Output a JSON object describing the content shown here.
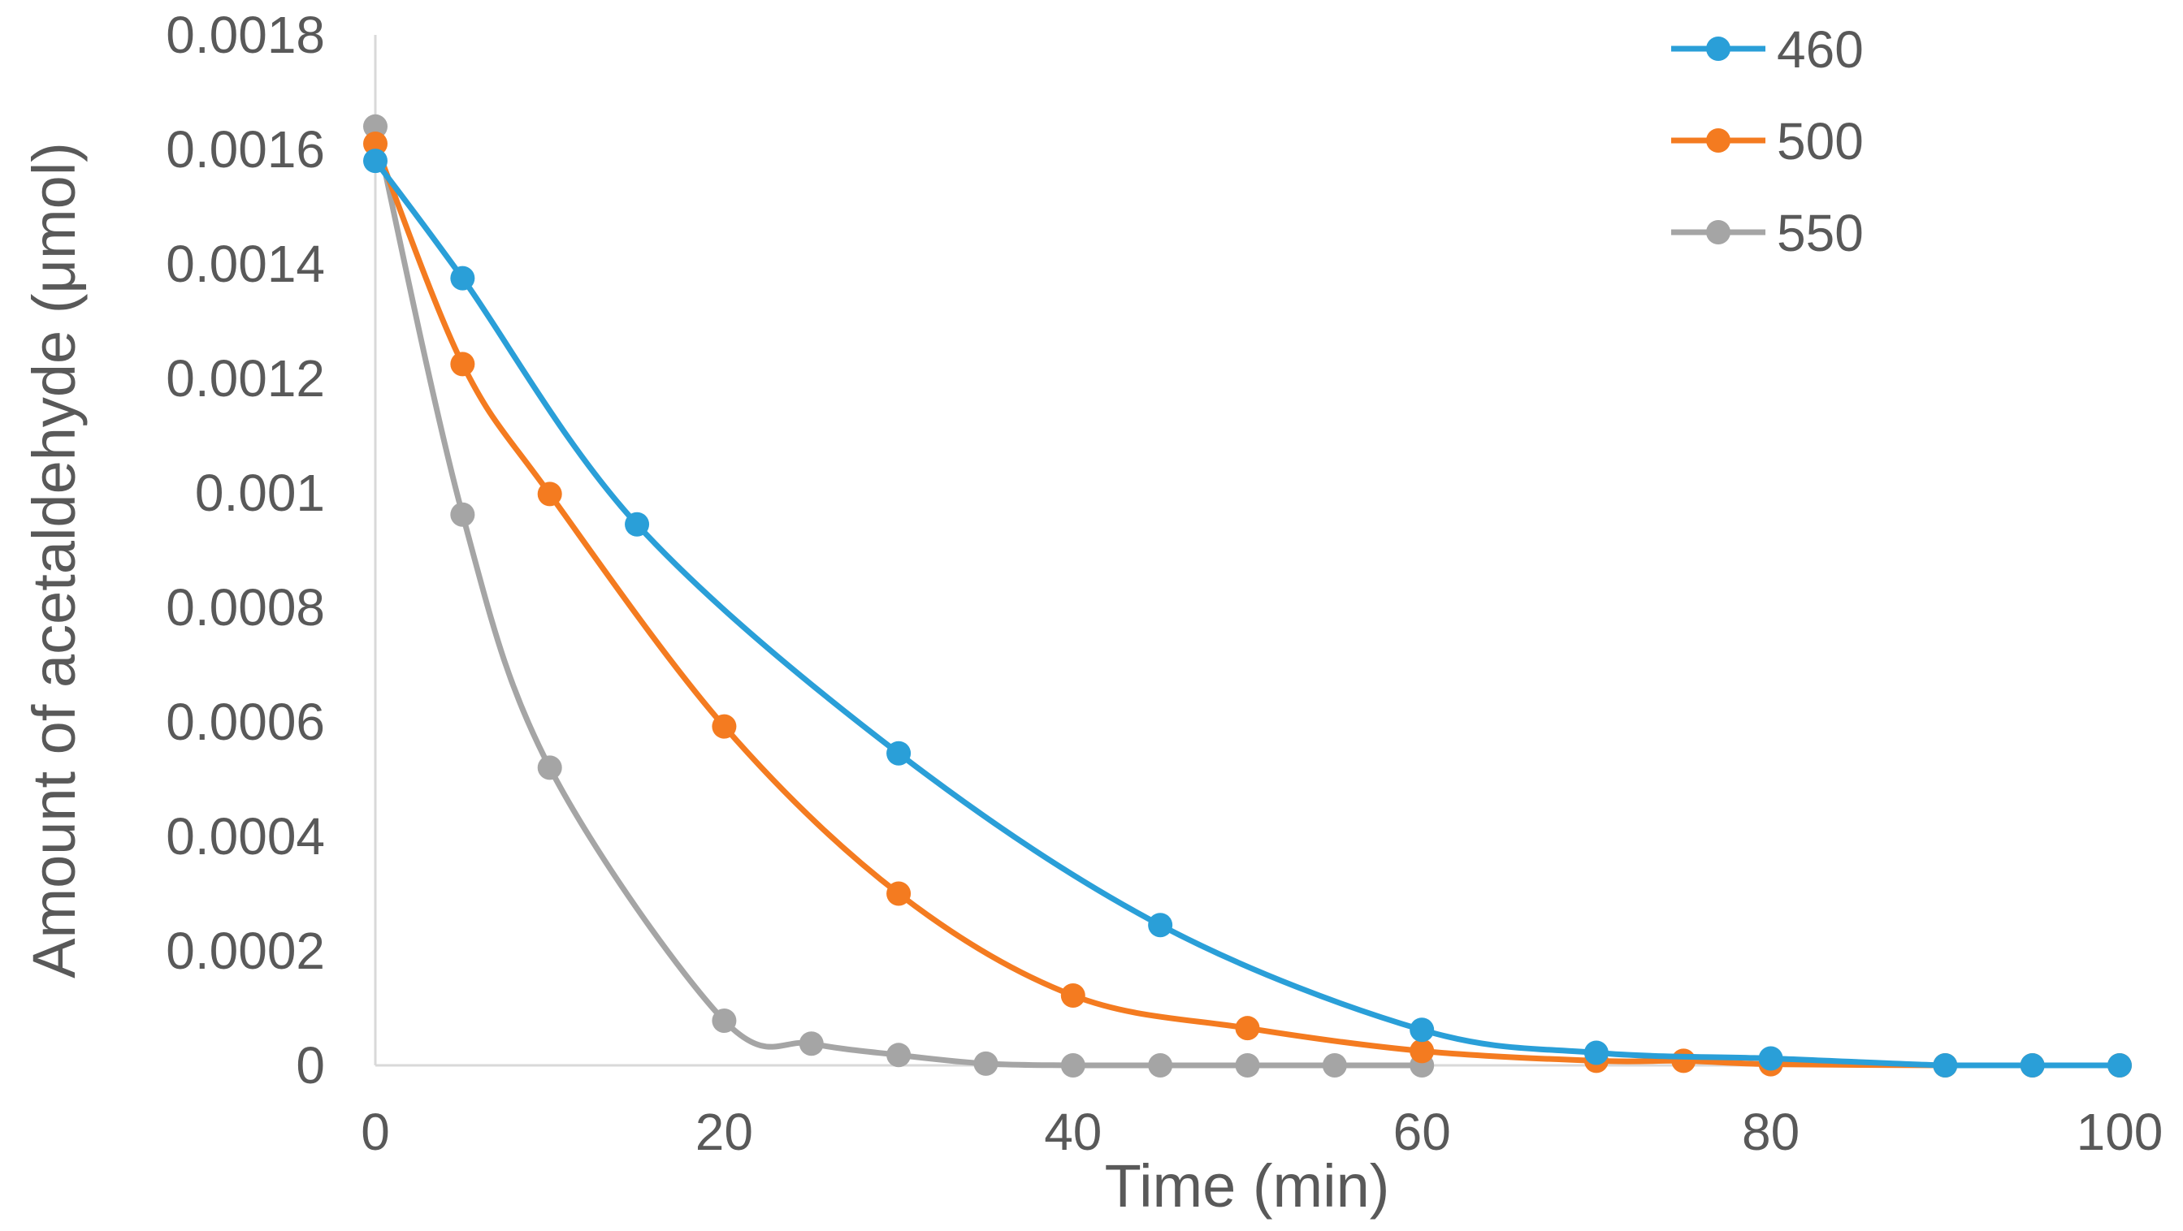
{
  "chart_data": {
    "type": "line",
    "title": "",
    "xlabel": "Time (min)",
    "ylabel": "Amount of acetaldehyde (μmol)",
    "xlim": [
      0,
      100
    ],
    "ylim": [
      0,
      0.0018
    ],
    "x_ticks": [
      "0",
      "20",
      "40",
      "60",
      "80",
      "100"
    ],
    "y_ticks": [
      "0",
      "0.0002",
      "0.0004",
      "0.0006",
      "0.0008",
      "0.001",
      "0.0012",
      "0.0014",
      "0.0016",
      "0.0018"
    ],
    "x_tick_values": [
      0,
      20,
      40,
      60,
      80,
      100
    ],
    "y_tick_values": [
      0,
      0.0002,
      0.0004,
      0.0006,
      0.0008,
      0.001,
      0.0012,
      0.0014,
      0.0016,
      0.0018
    ],
    "grid": false,
    "smooth": true,
    "legend_position": "top-right",
    "series": [
      {
        "name": "460",
        "color": "#2a9fd8",
        "x": [
          0,
          5,
          15,
          30,
          45,
          60,
          70,
          80,
          90,
          95,
          100
        ],
        "y": [
          0.00158,
          0.001375,
          0.000945,
          0.000545,
          0.000245,
          6.2e-05,
          2.2e-05,
          1.2e-05,
          0.0,
          0.0,
          0.0
        ]
      },
      {
        "name": "500",
        "color": "#f47b20",
        "x": [
          0,
          5,
          10,
          20,
          30,
          40,
          50,
          60,
          70,
          75,
          80,
          90,
          95,
          100
        ],
        "y": [
          0.00161,
          0.001225,
          0.000998,
          0.000592,
          0.0003,
          0.000122,
          6.5e-05,
          2.5e-05,
          8e-06,
          8e-06,
          2e-06,
          0.0,
          0.0,
          0.0
        ]
      },
      {
        "name": "550",
        "color": "#a5a5a5",
        "x": [
          0,
          5,
          10,
          20,
          25,
          30,
          35,
          40,
          45,
          50,
          55,
          60
        ],
        "y": [
          0.00164,
          0.000962,
          0.00052,
          7.8e-05,
          3.8e-05,
          1.8e-05,
          3e-06,
          0.0,
          0.0,
          0.0,
          0.0,
          0.0
        ]
      }
    ]
  }
}
